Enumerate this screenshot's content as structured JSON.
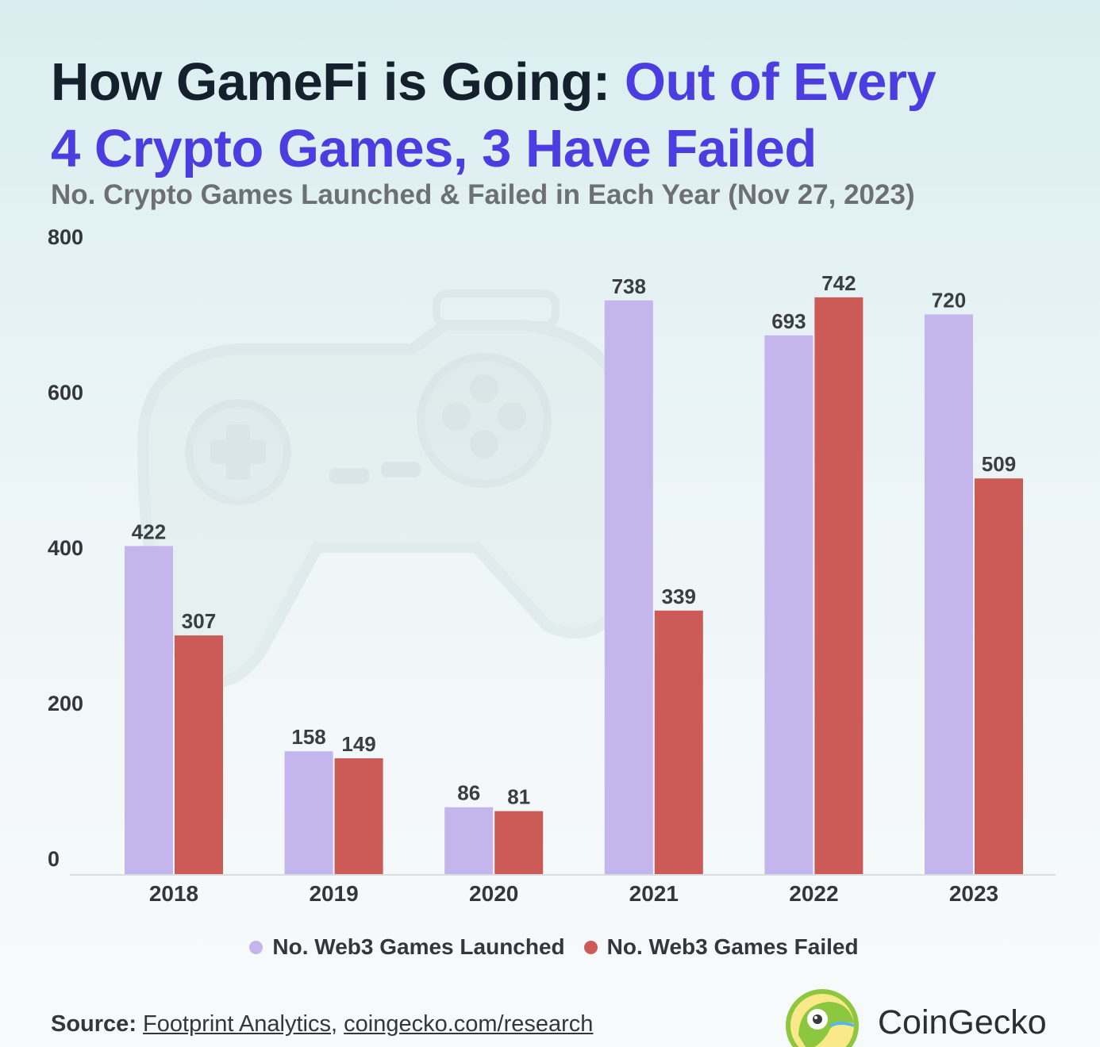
{
  "title": {
    "part1": "How GameFi is Going: ",
    "part2": "Out of Every",
    "part3": "4 Crypto Games, 3 Have Failed"
  },
  "subtitle": "No. Crypto Games Launched & Failed in Each Year (Nov 27, 2023)",
  "colors": {
    "launched": "#c4b5ec",
    "failed": "#cc5b57",
    "accent": "#4b3de0"
  },
  "chart_data": {
    "type": "bar",
    "categories": [
      "2018",
      "2019",
      "2020",
      "2021",
      "2022",
      "2023"
    ],
    "series": [
      {
        "name": "No. Web3 Games Launched",
        "values": [
          422,
          158,
          86,
          738,
          693,
          720
        ]
      },
      {
        "name": "No. Web3 Games Failed",
        "values": [
          307,
          149,
          81,
          339,
          742,
          509
        ]
      }
    ],
    "data_labels": {
      "launched": [
        "422",
        "158",
        "86",
        "738",
        "693",
        "720"
      ],
      "failed": [
        "307",
        "149",
        "81",
        "339",
        "742",
        "509"
      ]
    },
    "ylim": [
      0,
      800
    ],
    "yticks": [
      "0",
      "200",
      "400",
      "600",
      "800"
    ],
    "grid": false,
    "legend_position": "bottom-center"
  },
  "legend": {
    "launched": "No. Web3 Games Launched",
    "failed": "No. Web3 Games Failed"
  },
  "source": {
    "label": "Source:",
    "link1": "Footprint Analytics",
    "sep": ",",
    "link2": "coingecko.com/research"
  },
  "brand": {
    "name": "CoinGecko",
    "icon": "coingecko-logo-icon"
  },
  "watermark": {
    "icon": "gamepad-icon"
  }
}
